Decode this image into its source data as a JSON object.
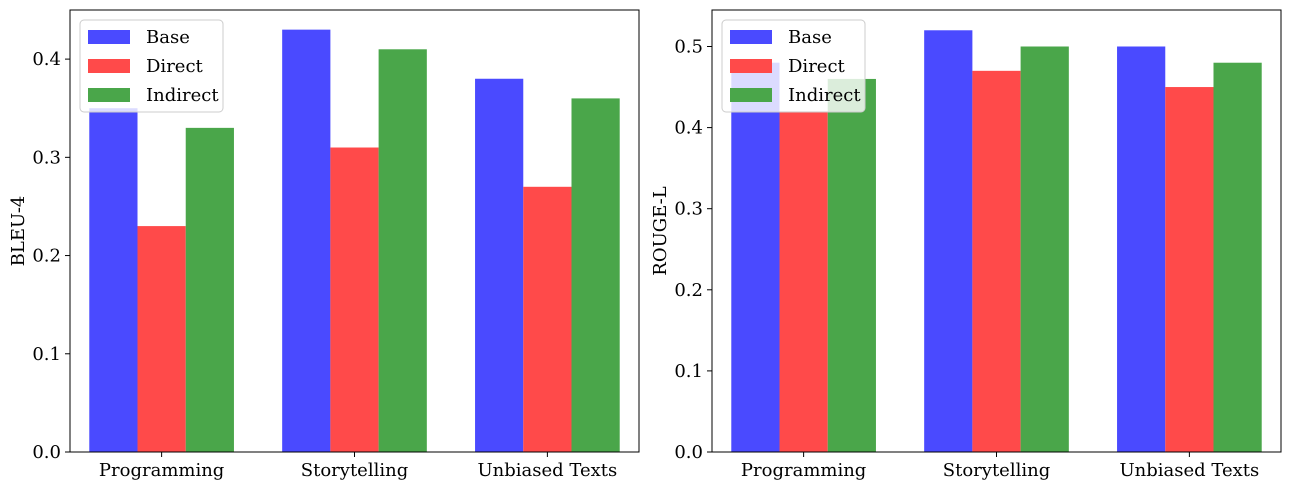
{
  "chart_data": [
    {
      "type": "bar",
      "categories": [
        "Programming",
        "Storytelling",
        "Unbiased Texts"
      ],
      "series": [
        {
          "name": "Base",
          "values": [
            0.35,
            0.43,
            0.38
          ],
          "color": "#4a4aff"
        },
        {
          "name": "Direct",
          "values": [
            0.23,
            0.31,
            0.27
          ],
          "color": "#ff4a4a"
        },
        {
          "name": "Indirect",
          "values": [
            0.33,
            0.41,
            0.36
          ],
          "color": "#4aa64a"
        }
      ],
      "xlabel": "",
      "ylabel": "BLEU-4",
      "ylim": [
        0,
        0.45
      ],
      "yticks": [
        0.0,
        0.1,
        0.2,
        0.3,
        0.4
      ],
      "ytick_labels": [
        "0.0",
        "0.1",
        "0.2",
        "0.3",
        "0.4"
      ],
      "legend_position": "top-left",
      "grid": false
    },
    {
      "type": "bar",
      "categories": [
        "Programming",
        "Storytelling",
        "Unbiased Texts"
      ],
      "series": [
        {
          "name": "Base",
          "values": [
            0.48,
            0.52,
            0.5
          ],
          "color": "#4a4aff"
        },
        {
          "name": "Direct",
          "values": [
            0.42,
            0.47,
            0.45
          ],
          "color": "#ff4a4a"
        },
        {
          "name": "Indirect",
          "values": [
            0.46,
            0.5,
            0.48
          ],
          "color": "#4aa64a"
        }
      ],
      "xlabel": "",
      "ylabel": "ROUGE-L",
      "ylim": [
        0,
        0.545
      ],
      "yticks": [
        0.0,
        0.1,
        0.2,
        0.3,
        0.4,
        0.5
      ],
      "ytick_labels": [
        "0.0",
        "0.1",
        "0.2",
        "0.3",
        "0.4",
        "0.5"
      ],
      "legend_position": "top-left",
      "grid": false
    }
  ]
}
